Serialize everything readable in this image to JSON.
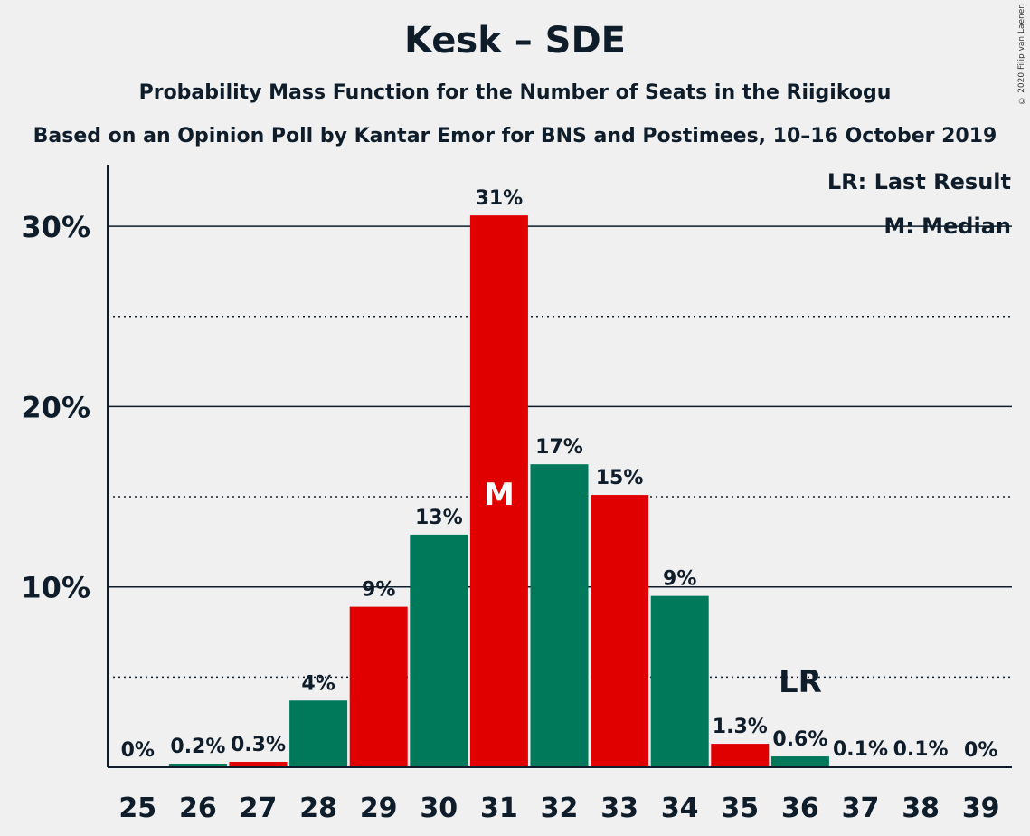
{
  "title": "Kesk – SDE",
  "subtitle": "Probability Mass Function for the Number of Seats in the Riigikogu",
  "subtitle2": "Based on an Opinion Poll by Kantar Emor for BNS and Postimees, 10–16 October 2019",
  "copyright": "© 2020 Filip van Laenen",
  "legend": {
    "last_result": "LR: Last Result",
    "median": "M: Median"
  },
  "colors": {
    "red": "#e10000",
    "green": "#00785a",
    "background": "#f0f0f0",
    "text": "#0f1d2a"
  },
  "chart_data": {
    "type": "bar",
    "categories": [
      "25",
      "26",
      "27",
      "28",
      "29",
      "30",
      "31",
      "32",
      "33",
      "34",
      "35",
      "36",
      "37",
      "38",
      "39"
    ],
    "values": [
      0,
      0.2,
      0.3,
      3.7,
      8.9,
      12.9,
      30.6,
      16.8,
      15.1,
      9.5,
      1.3,
      0.6,
      0.05,
      0.05,
      0
    ],
    "labels": [
      "0%",
      "0.2%",
      "0.3%",
      "4%",
      "9%",
      "13%",
      "31%",
      "17%",
      "15%",
      "9%",
      "1.3%",
      "0.6%",
      "0.1%",
      "0.1%",
      "0%"
    ],
    "bar_colors": [
      "red",
      "green",
      "red",
      "green",
      "red",
      "green",
      "red",
      "green",
      "red",
      "green",
      "red",
      "green",
      "red",
      "green",
      "red"
    ],
    "yticks": [
      {
        "value": 10,
        "label": "10%"
      },
      {
        "value": 20,
        "label": "20%"
      },
      {
        "value": 30,
        "label": "30%"
      }
    ],
    "minor_gridlines": [
      5,
      15,
      25
    ],
    "ylim": [
      0,
      33.5
    ],
    "median": {
      "category": "31",
      "label": "M"
    },
    "last_result": {
      "category": "36",
      "label": "LR"
    },
    "legend_position": "top-right"
  }
}
